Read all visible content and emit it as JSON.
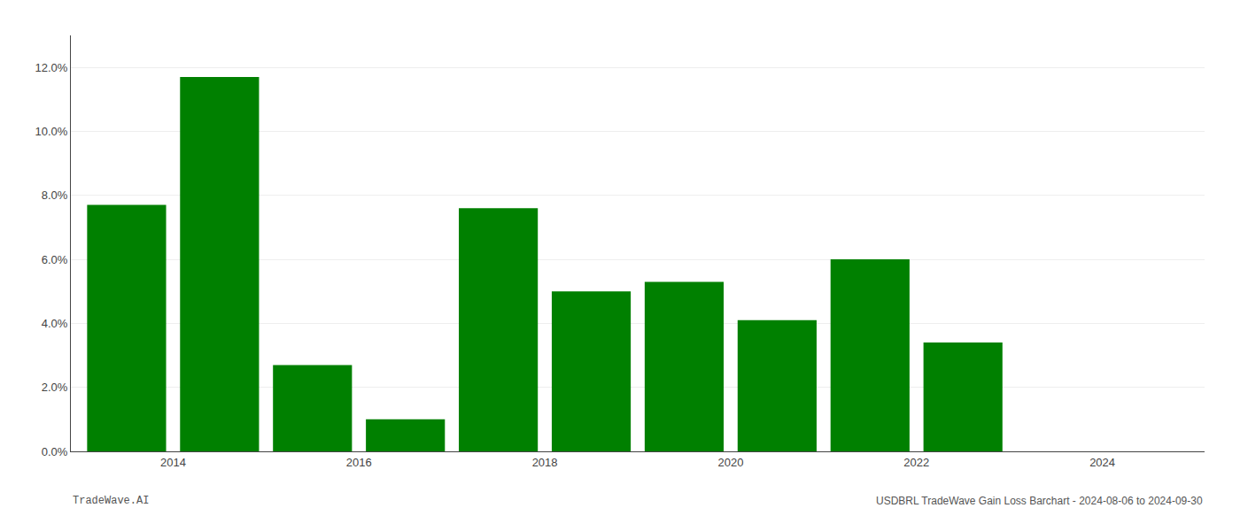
{
  "chart_data": {
    "type": "bar",
    "x": [
      2013,
      2014,
      2015,
      2016,
      2017,
      2018,
      2019,
      2020,
      2021,
      2022
    ],
    "values": [
      0.077,
      0.117,
      0.027,
      0.01,
      0.076,
      0.05,
      0.053,
      0.041,
      0.06,
      0.034
    ],
    "color": "#008000",
    "xlim": [
      2012.4,
      2024.6
    ],
    "xticks": [
      {
        "value": 2013.5,
        "label": "2014"
      },
      {
        "value": 2015.5,
        "label": "2016"
      },
      {
        "value": 2017.5,
        "label": "2018"
      },
      {
        "value": 2019.5,
        "label": "2020"
      },
      {
        "value": 2021.5,
        "label": "2022"
      },
      {
        "value": 2023.5,
        "label": "2024"
      }
    ],
    "ylim": [
      0,
      0.13
    ],
    "yticks": [
      {
        "value": 0.0,
        "label": "0.0%"
      },
      {
        "value": 0.02,
        "label": "2.0%"
      },
      {
        "value": 0.04,
        "label": "4.0%"
      },
      {
        "value": 0.06,
        "label": "6.0%"
      },
      {
        "value": 0.08,
        "label": "8.0%"
      },
      {
        "value": 0.1,
        "label": "10.0%"
      },
      {
        "value": 0.12,
        "label": "12.0%"
      }
    ],
    "grid": true,
    "annotations": [
      "TradeWave.AI",
      "USDBRL TradeWave Gain Loss Barchart - 2024-08-06 to 2024-09-30"
    ]
  }
}
